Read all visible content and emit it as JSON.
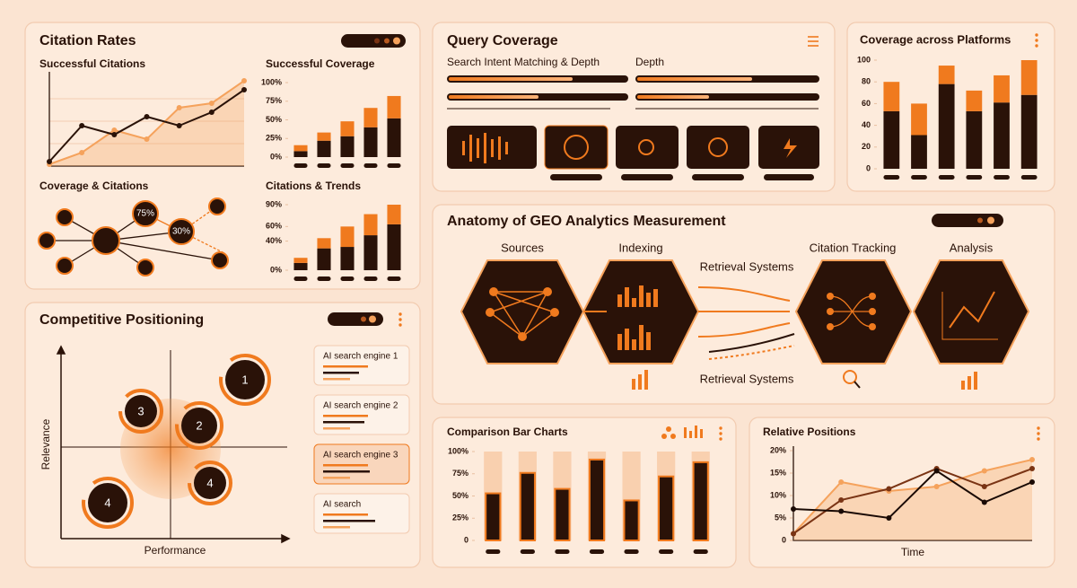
{
  "citation_rates": {
    "title": "Citation Rates",
    "network_title": "Coverage & Citations",
    "network_labels": [
      "75%",
      "30%"
    ]
  },
  "query_coverage": {
    "title": "Query Coverage",
    "labels": [
      "Search Intent Matching & Depth",
      "Depth"
    ]
  },
  "anatomy": {
    "title": "Anatomy of GEO Analytics Measurement",
    "stages": [
      "Sources",
      "Indexing",
      "Retrieval Systems",
      "Citation Tracking",
      "Analysis"
    ],
    "lower_label": "Retrieval Systems"
  },
  "competitive": {
    "title": "Competitive Positioning",
    "y_label": "Relevance",
    "x_label": "Performance",
    "bubbles": [
      "1",
      "3",
      "2",
      "4",
      "4"
    ],
    "legend": [
      "AI search engine 1",
      "AI search engine 2",
      "AI search engine 3",
      "AI search"
    ]
  },
  "chart_data": [
    {
      "type": "line",
      "title": "Successful Citations",
      "ylim": [
        0,
        100
      ],
      "grid": true,
      "area": true,
      "series": [
        {
          "color": "#f5a25c",
          "values": [
            2,
            15,
            40,
            30,
            65,
            70,
            95
          ]
        },
        {
          "color": "#2a1208",
          "values": [
            5,
            45,
            35,
            55,
            45,
            60,
            85
          ]
        }
      ]
    },
    {
      "type": "stacked_bar",
      "title": "Successful Coverage",
      "ylim": [
        0,
        100
      ],
      "yticks": [
        {
          "value": 100,
          "label": "100%"
        },
        {
          "value": 75,
          "label": "75%"
        },
        {
          "value": 50,
          "label": "50%"
        },
        {
          "value": 25,
          "label": "25%"
        },
        {
          "value": 0,
          "label": "0%"
        }
      ],
      "series": [
        {
          "color": "#2a1208",
          "values": [
            8,
            22,
            28,
            40,
            52
          ]
        },
        {
          "color": "#f07a1e",
          "values": [
            8,
            11,
            20,
            26,
            30
          ]
        }
      ]
    },
    {
      "type": "stacked_bar",
      "title": "Citations & Trends",
      "ylim": [
        0,
        90
      ],
      "yticks": [
        {
          "value": 90,
          "label": "90%"
        },
        {
          "value": 60,
          "label": "60%"
        },
        {
          "value": 40,
          "label": "40%"
        },
        {
          "value": 0,
          "label": "0%"
        }
      ],
      "series": [
        {
          "color": "#2a1208",
          "values": [
            10,
            30,
            32,
            48,
            63
          ]
        },
        {
          "color": "#f07a1e",
          "values": [
            7,
            14,
            28,
            29,
            27
          ]
        }
      ]
    },
    {
      "type": "stacked_bar",
      "title": "Coverage across Platforms",
      "ylim": [
        0,
        100
      ],
      "yticks": [
        0,
        20,
        40,
        60,
        80,
        100
      ],
      "series": [
        {
          "color": "#2a1208",
          "values": [
            53,
            31,
            78,
            53,
            61,
            68
          ]
        },
        {
          "color": "#f07a1e",
          "values": [
            27,
            29,
            17,
            19,
            25,
            32
          ]
        }
      ]
    },
    {
      "type": "bar",
      "title": "Comparison Bar Charts",
      "ylim": [
        0,
        100
      ],
      "color": "#2a1208",
      "yticks": [
        {
          "value": 100,
          "label": "100%"
        },
        {
          "value": 75,
          "label": "75%"
        },
        {
          "value": 50,
          "label": "50%"
        },
        {
          "value": 25,
          "label": "25%"
        },
        0
      ],
      "values": [
        53,
        76,
        58,
        91,
        45,
        72,
        88
      ]
    },
    {
      "type": "line",
      "title": "Relative Positions",
      "xlabel": "Time",
      "ylim": [
        0,
        20
      ],
      "area": true,
      "yticks": [
        0,
        {
          "value": 5,
          "label": "5%"
        },
        {
          "value": 10,
          "label": "10%"
        },
        {
          "value": 15,
          "label": "15%"
        },
        {
          "value": 20,
          "label": "20%"
        }
      ],
      "series": [
        {
          "color": "#f5a25c",
          "values": [
            1.5,
            13,
            11,
            12,
            15.5,
            18
          ]
        },
        {
          "color": "#7a3414",
          "values": [
            1.5,
            9,
            11.5,
            16,
            12,
            16
          ]
        },
        {
          "color": "#1a0a04",
          "values": [
            7,
            6.5,
            5,
            15.5,
            8.5,
            13
          ]
        }
      ]
    }
  ]
}
